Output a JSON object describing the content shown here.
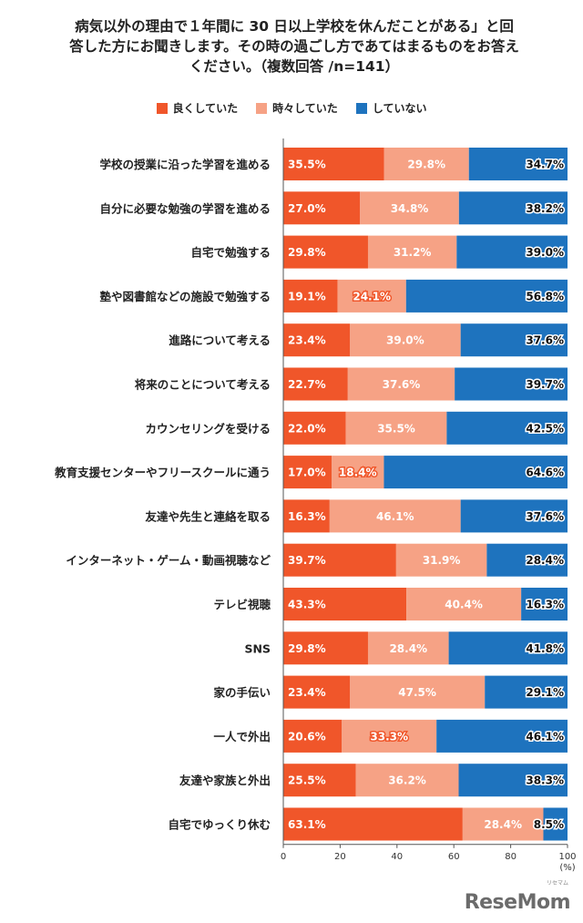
{
  "title": "病気以外の理由で１年間に 30 日以上学校を休んだことがある」と回\n答した方にお聞きします。その時の過ごし方であてはまるものをお答え\nください。（複数回答 /n=141）",
  "logo": "ReseMom",
  "logo_sub": "リセマム",
  "colors": {
    "good": "#f0562a",
    "sometimes": "#f6a285",
    "none": "#1e73be"
  },
  "chart_data": {
    "type": "bar",
    "orientation": "horizontal-stacked-100",
    "title": "病気以外の理由で１年間に 30 日以上学校を休んだことがある」と回答した方にお聞きします。その時の過ごし方であてはまるものをお答えください。（複数回答 /n=141）",
    "xlabel": "",
    "ylabel": "",
    "x_unit": "(%)",
    "xlim": [
      0,
      100
    ],
    "xticks": [
      0,
      20,
      40,
      60,
      80,
      100
    ],
    "grid": false,
    "legend_position": "top",
    "categories": [
      "学校の授業に沿った学習を進める",
      "自分に必要な勉強の学習を進める",
      "自宅で勉強する",
      "塾や図書館などの施設で勉強する",
      "進路について考える",
      "将来のことについて考える",
      "カウンセリングを受ける",
      "教育支援センターやフリースクールに通う",
      "友達や先生と連絡を取る",
      "インターネット・ゲーム・動画視聴など",
      "テレビ視聴",
      "SNS",
      "家の手伝い",
      "一人で外出",
      "友達や家族と外出",
      "自宅でゆっくり休む"
    ],
    "series": [
      {
        "name": "良くしていた",
        "color": "#f0562a",
        "values": [
          35.5,
          27.0,
          29.8,
          19.1,
          23.4,
          22.7,
          22.0,
          17.0,
          16.3,
          39.7,
          43.3,
          29.8,
          23.4,
          20.6,
          25.5,
          63.1
        ],
        "labels": [
          "35.5%",
          "27.0%",
          "29.8%",
          "19.1%",
          "23.4%",
          "22.7%",
          "22.0%",
          "17.0%",
          "16.3%",
          "39.7%",
          "43.3%",
          "29.8%",
          "23.4%",
          "20.6%",
          "25.5%",
          "63.1%"
        ]
      },
      {
        "name": "時々していた",
        "color": "#f6a285",
        "values": [
          29.8,
          34.8,
          31.2,
          24.1,
          39.0,
          37.6,
          35.5,
          18.4,
          46.1,
          31.9,
          40.4,
          28.4,
          47.5,
          33.3,
          36.2,
          28.4
        ],
        "labels": [
          "29.8%",
          "34.8%",
          "31.2%",
          "24.1%",
          "39.0%",
          "37.6%",
          "35.5%",
          "18.4%",
          "46.1%",
          "31.9%",
          "40.4%",
          "28.4%",
          "47.5%",
          "33.3%",
          "36.2%",
          "28.4%"
        ]
      },
      {
        "name": "していない",
        "color": "#1e73be",
        "values": [
          34.7,
          38.2,
          39.0,
          56.8,
          37.6,
          39.7,
          42.5,
          64.6,
          37.6,
          28.4,
          16.3,
          41.8,
          29.1,
          46.1,
          38.3,
          8.5
        ],
        "labels": [
          "34.7%",
          "38.2%",
          "39.0%",
          "56.8%",
          "37.6%",
          "39.7%",
          "42.5%",
          "64.6%",
          "37.6%",
          "28.4%",
          "16.3%",
          "41.8%",
          "29.1%",
          "46.1%",
          "38.3%",
          "8.5%"
        ]
      }
    ]
  }
}
